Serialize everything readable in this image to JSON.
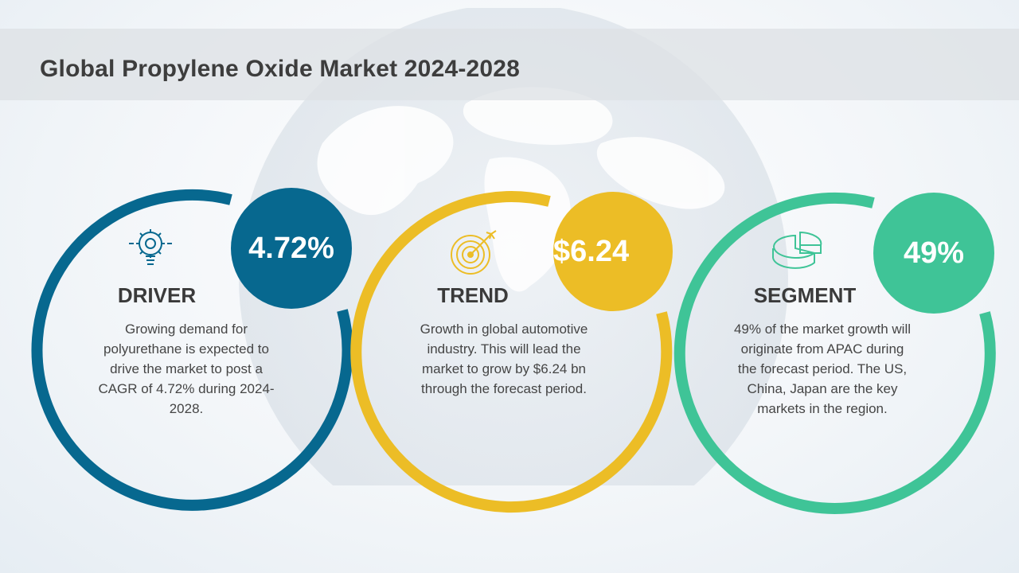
{
  "page": {
    "title": "Global Propylene Oxide Market 2024-2028"
  },
  "theme": {
    "driver_color": "#07688f",
    "trend_color": "#ecbd26",
    "segment_color": "#3fc497"
  },
  "cards": [
    {
      "id": "driver",
      "heading": "DRIVER",
      "value": "4.72%",
      "icon": "lightbulb-gear-icon",
      "body": "Growing demand for polyurethane is expected to drive the market to post a CAGR of 4.72% during 2024-2028."
    },
    {
      "id": "trend",
      "heading": "TREND",
      "value": "$6.24",
      "icon": "target-arrow-icon",
      "body": "Growth in global automotive industry. This will lead the market to grow by $6.24 bn through the forecast period."
    },
    {
      "id": "segment",
      "heading": "SEGMENT",
      "value": "49%",
      "icon": "pie-chart-icon",
      "body": "49% of the market growth will originate from APAC during the forecast period. The US, China, Japan are the key markets in the region."
    }
  ]
}
